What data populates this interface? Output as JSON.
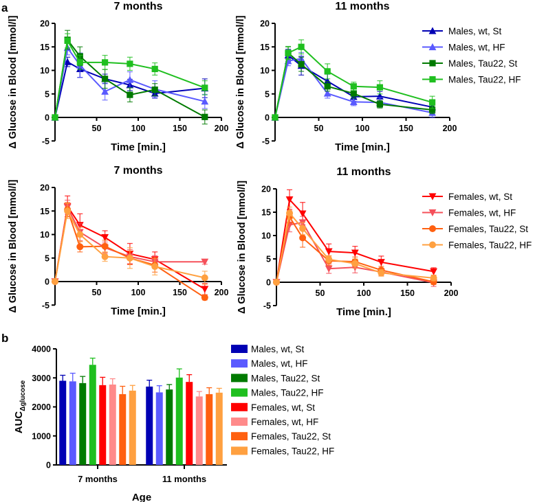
{
  "panel_labels": [
    "a",
    "b"
  ],
  "chart_data": [
    {
      "type": "line",
      "panel": "a",
      "title": "7 months",
      "xlabel": "Time [min.]",
      "ylabel": "Δ Glucose in Blood [mmol/l]",
      "xlim": [
        0,
        200
      ],
      "ylim": [
        -5,
        20
      ],
      "xticks": [
        50,
        100,
        150,
        200
      ],
      "yticks": [
        -5,
        0,
        5,
        10,
        15,
        20
      ],
      "x": [
        0,
        15,
        30,
        60,
        90,
        120,
        180
      ],
      "series": [
        {
          "name": "Males, wt, St",
          "color": "#0000b4",
          "marker": "triangle-up",
          "values": [
            0,
            11.8,
            10.3,
            8.2,
            6.9,
            5.1,
            6.2
          ],
          "errors": [
            0,
            1,
            1.8,
            1,
            1.2,
            1,
            2
          ]
        },
        {
          "name": "Males, wt, HF",
          "color": "#5a5aff",
          "marker": "triangle-up",
          "values": [
            0,
            14.8,
            11.1,
            5.5,
            8.0,
            6.0,
            3.4
          ],
          "errors": [
            0,
            1.5,
            2.6,
            1.8,
            1.7,
            1.8,
            1.5
          ]
        },
        {
          "name": "Males, Tau22, St",
          "color": "#007a00",
          "marker": "square",
          "values": [
            0,
            16.5,
            13.0,
            8.2,
            4.8,
            5.9,
            0.1
          ],
          "errors": [
            0,
            2,
            2,
            2,
            1.5,
            1.3,
            1.5
          ]
        },
        {
          "name": "Males, Tau22, HF",
          "color": "#1fbf1f",
          "marker": "square",
          "values": [
            0,
            16.3,
            11.7,
            11.7,
            11.4,
            10.3,
            6.3
          ],
          "errors": [
            0,
            1.5,
            1.5,
            1.5,
            1.4,
            1.3,
            1.5
          ]
        }
      ]
    },
    {
      "type": "line",
      "panel": "a",
      "title": "11 months",
      "xlabel": "Time [min.]",
      "ylabel": "Δ Glucose in Blood [mmol/l]",
      "xlim": [
        0,
        200
      ],
      "ylim": [
        -5,
        20
      ],
      "xticks": [
        50,
        100,
        150,
        200
      ],
      "yticks": [
        -5,
        0,
        5,
        10,
        15,
        20
      ],
      "legend": "right",
      "x": [
        0,
        15,
        30,
        60,
        90,
        120,
        180
      ],
      "series": [
        {
          "name": "Males, wt, St",
          "color": "#0000b4",
          "marker": "triangle-up",
          "values": [
            0,
            13.2,
            11.0,
            7.7,
            4.4,
            4.5,
            2.2
          ],
          "errors": [
            0,
            1.3,
            2,
            1.5,
            1,
            1,
            0.8
          ]
        },
        {
          "name": "Males, wt, HF",
          "color": "#5a5aff",
          "marker": "triangle-up",
          "values": [
            0,
            12.0,
            12.5,
            5.1,
            3.3,
            3.2,
            1.0
          ],
          "errors": [
            0,
            1,
            1.3,
            1,
            0.8,
            1,
            1
          ]
        },
        {
          "name": "Males, Tau22, St",
          "color": "#007a00",
          "marker": "square",
          "values": [
            0,
            13.7,
            11.3,
            6.6,
            5.1,
            2.8,
            1.6
          ],
          "errors": [
            0,
            1.3,
            1.5,
            1,
            1,
            0.8,
            0.8
          ]
        },
        {
          "name": "Males, Tau22, HF",
          "color": "#1fbf1f",
          "marker": "square",
          "values": [
            0,
            13.7,
            15.0,
            9.8,
            6.6,
            6.4,
            3.2
          ],
          "errors": [
            0,
            1.4,
            1.5,
            1.6,
            0.9,
            1.4,
            1.3
          ]
        }
      ]
    },
    {
      "type": "line",
      "panel": "a",
      "title": "7 months",
      "xlabel": "Time [min.]",
      "ylabel": "Δ Glucose in Blood [mmol/l]",
      "xlim": [
        0,
        200
      ],
      "ylim": [
        -5,
        20
      ],
      "xticks": [
        50,
        100,
        150,
        200
      ],
      "yticks": [
        -5,
        0,
        5,
        10,
        15,
        20
      ],
      "x": [
        0,
        15,
        30,
        60,
        90,
        120,
        180
      ],
      "series": [
        {
          "name": "Females, wt, St",
          "color": "#ff0000",
          "marker": "triangle-down",
          "values": [
            0,
            16.0,
            12.0,
            9.4,
            5.9,
            4.7,
            -1.6
          ],
          "errors": [
            0,
            2.2,
            2.4,
            1.4,
            2.2,
            1.6,
            1.2
          ]
        },
        {
          "name": "Females, wt, HF",
          "color": "#f5505a",
          "marker": "triangle-down",
          "values": [
            0,
            15.8,
            10.5,
            7.2,
            5.3,
            4.2,
            4.2
          ],
          "errors": [
            0,
            1.5,
            1.8,
            1.2,
            1.5,
            1.3,
            0.5
          ]
        },
        {
          "name": "Females, Tau22, St",
          "color": "#ff6010",
          "marker": "circle",
          "values": [
            0,
            15.3,
            7.4,
            7.5,
            5.0,
            3.5,
            -3.4
          ],
          "errors": [
            0,
            1.5,
            1.1,
            1.3,
            1.4,
            1.5,
            0.5
          ]
        },
        {
          "name": "Females, Tau22, HF",
          "color": "#ffa040",
          "marker": "circle",
          "values": [
            0,
            15.0,
            10.0,
            5.3,
            5.0,
            3.2,
            0.8
          ],
          "errors": [
            0,
            1.6,
            1.5,
            1,
            2.2,
            1.8,
            1.4
          ]
        }
      ]
    },
    {
      "type": "line",
      "panel": "a",
      "title": "11 months",
      "xlabel": "Time [min.]",
      "ylabel": "Δ Glucose in Blood [mmol/l]",
      "xlim": [
        0,
        200
      ],
      "ylim": [
        -5,
        20
      ],
      "xticks": [
        50,
        100,
        150,
        200
      ],
      "yticks": [
        -5,
        0,
        5,
        10,
        15,
        20
      ],
      "legend": "right",
      "x": [
        0,
        15,
        30,
        60,
        90,
        120,
        180
      ],
      "series": [
        {
          "name": "Females, wt, St",
          "color": "#ff0000",
          "marker": "triangle-down",
          "values": [
            0,
            17.7,
            14.7,
            6.6,
            6.3,
            4.3,
            2.3
          ],
          "errors": [
            0,
            2.1,
            2.4,
            1.6,
            1.4,
            1.3,
            0.8
          ]
        },
        {
          "name": "Females, wt, HF",
          "color": "#f5505a",
          "marker": "triangle-down",
          "values": [
            0,
            12.3,
            12.8,
            2.9,
            3.2,
            2.2,
            -0.1
          ],
          "errors": [
            0,
            1.5,
            1.3,
            1,
            1.2,
            0.8,
            0.8
          ]
        },
        {
          "name": "Females, Tau22, St",
          "color": "#ff6010",
          "marker": "circle",
          "values": [
            0,
            14.0,
            9.5,
            4.6,
            4.4,
            2.6,
            0.1
          ],
          "errors": [
            0,
            1.3,
            2,
            1,
            1,
            0.8,
            0.6
          ]
        },
        {
          "name": "Females, Tau22, HF",
          "color": "#ffa040",
          "marker": "circle",
          "values": [
            0,
            14.8,
            11.5,
            4.9,
            4.0,
            2.0,
            0.9
          ],
          "errors": [
            0,
            1.3,
            1.3,
            0.8,
            1,
            0.7,
            0.6
          ]
        }
      ]
    },
    {
      "type": "bar",
      "panel": "b",
      "xlabel": "Age",
      "ylabel": "AUC",
      "ylabel_sub": "Δglucose",
      "ylim": [
        0,
        4000
      ],
      "yticks": [
        0,
        1000,
        2000,
        3000,
        4000
      ],
      "categories": [
        "7 months",
        "11 months"
      ],
      "legend": "right",
      "series": [
        {
          "name": "Males, wt, St",
          "color": "#0000b4",
          "values": [
            2900,
            2700
          ],
          "errors": [
            190,
            220
          ]
        },
        {
          "name": "Males, wt, HF",
          "color": "#5a5aff",
          "values": [
            2880,
            2500
          ],
          "errors": [
            280,
            230
          ]
        },
        {
          "name": "Males, Tau22, St",
          "color": "#007a00",
          "values": [
            2820,
            2600
          ],
          "errors": [
            230,
            170
          ]
        },
        {
          "name": "Males, Tau22, HF",
          "color": "#1fbf1f",
          "values": [
            3450,
            3010
          ],
          "errors": [
            230,
            300
          ]
        },
        {
          "name": "Females, wt, St",
          "color": "#ff0000",
          "values": [
            2750,
            2860
          ],
          "errors": [
            270,
            250
          ]
        },
        {
          "name": "Females, wt, HF",
          "color": "#ff8a8a",
          "values": [
            2770,
            2360
          ],
          "errors": [
            200,
            170
          ]
        },
        {
          "name": "Females, Tau22, St",
          "color": "#ff6010",
          "values": [
            2440,
            2440
          ],
          "errors": [
            270,
            220
          ]
        },
        {
          "name": "Females, Tau22, HF",
          "color": "#ffa040",
          "values": [
            2560,
            2490
          ],
          "errors": [
            180,
            150
          ]
        }
      ]
    }
  ]
}
